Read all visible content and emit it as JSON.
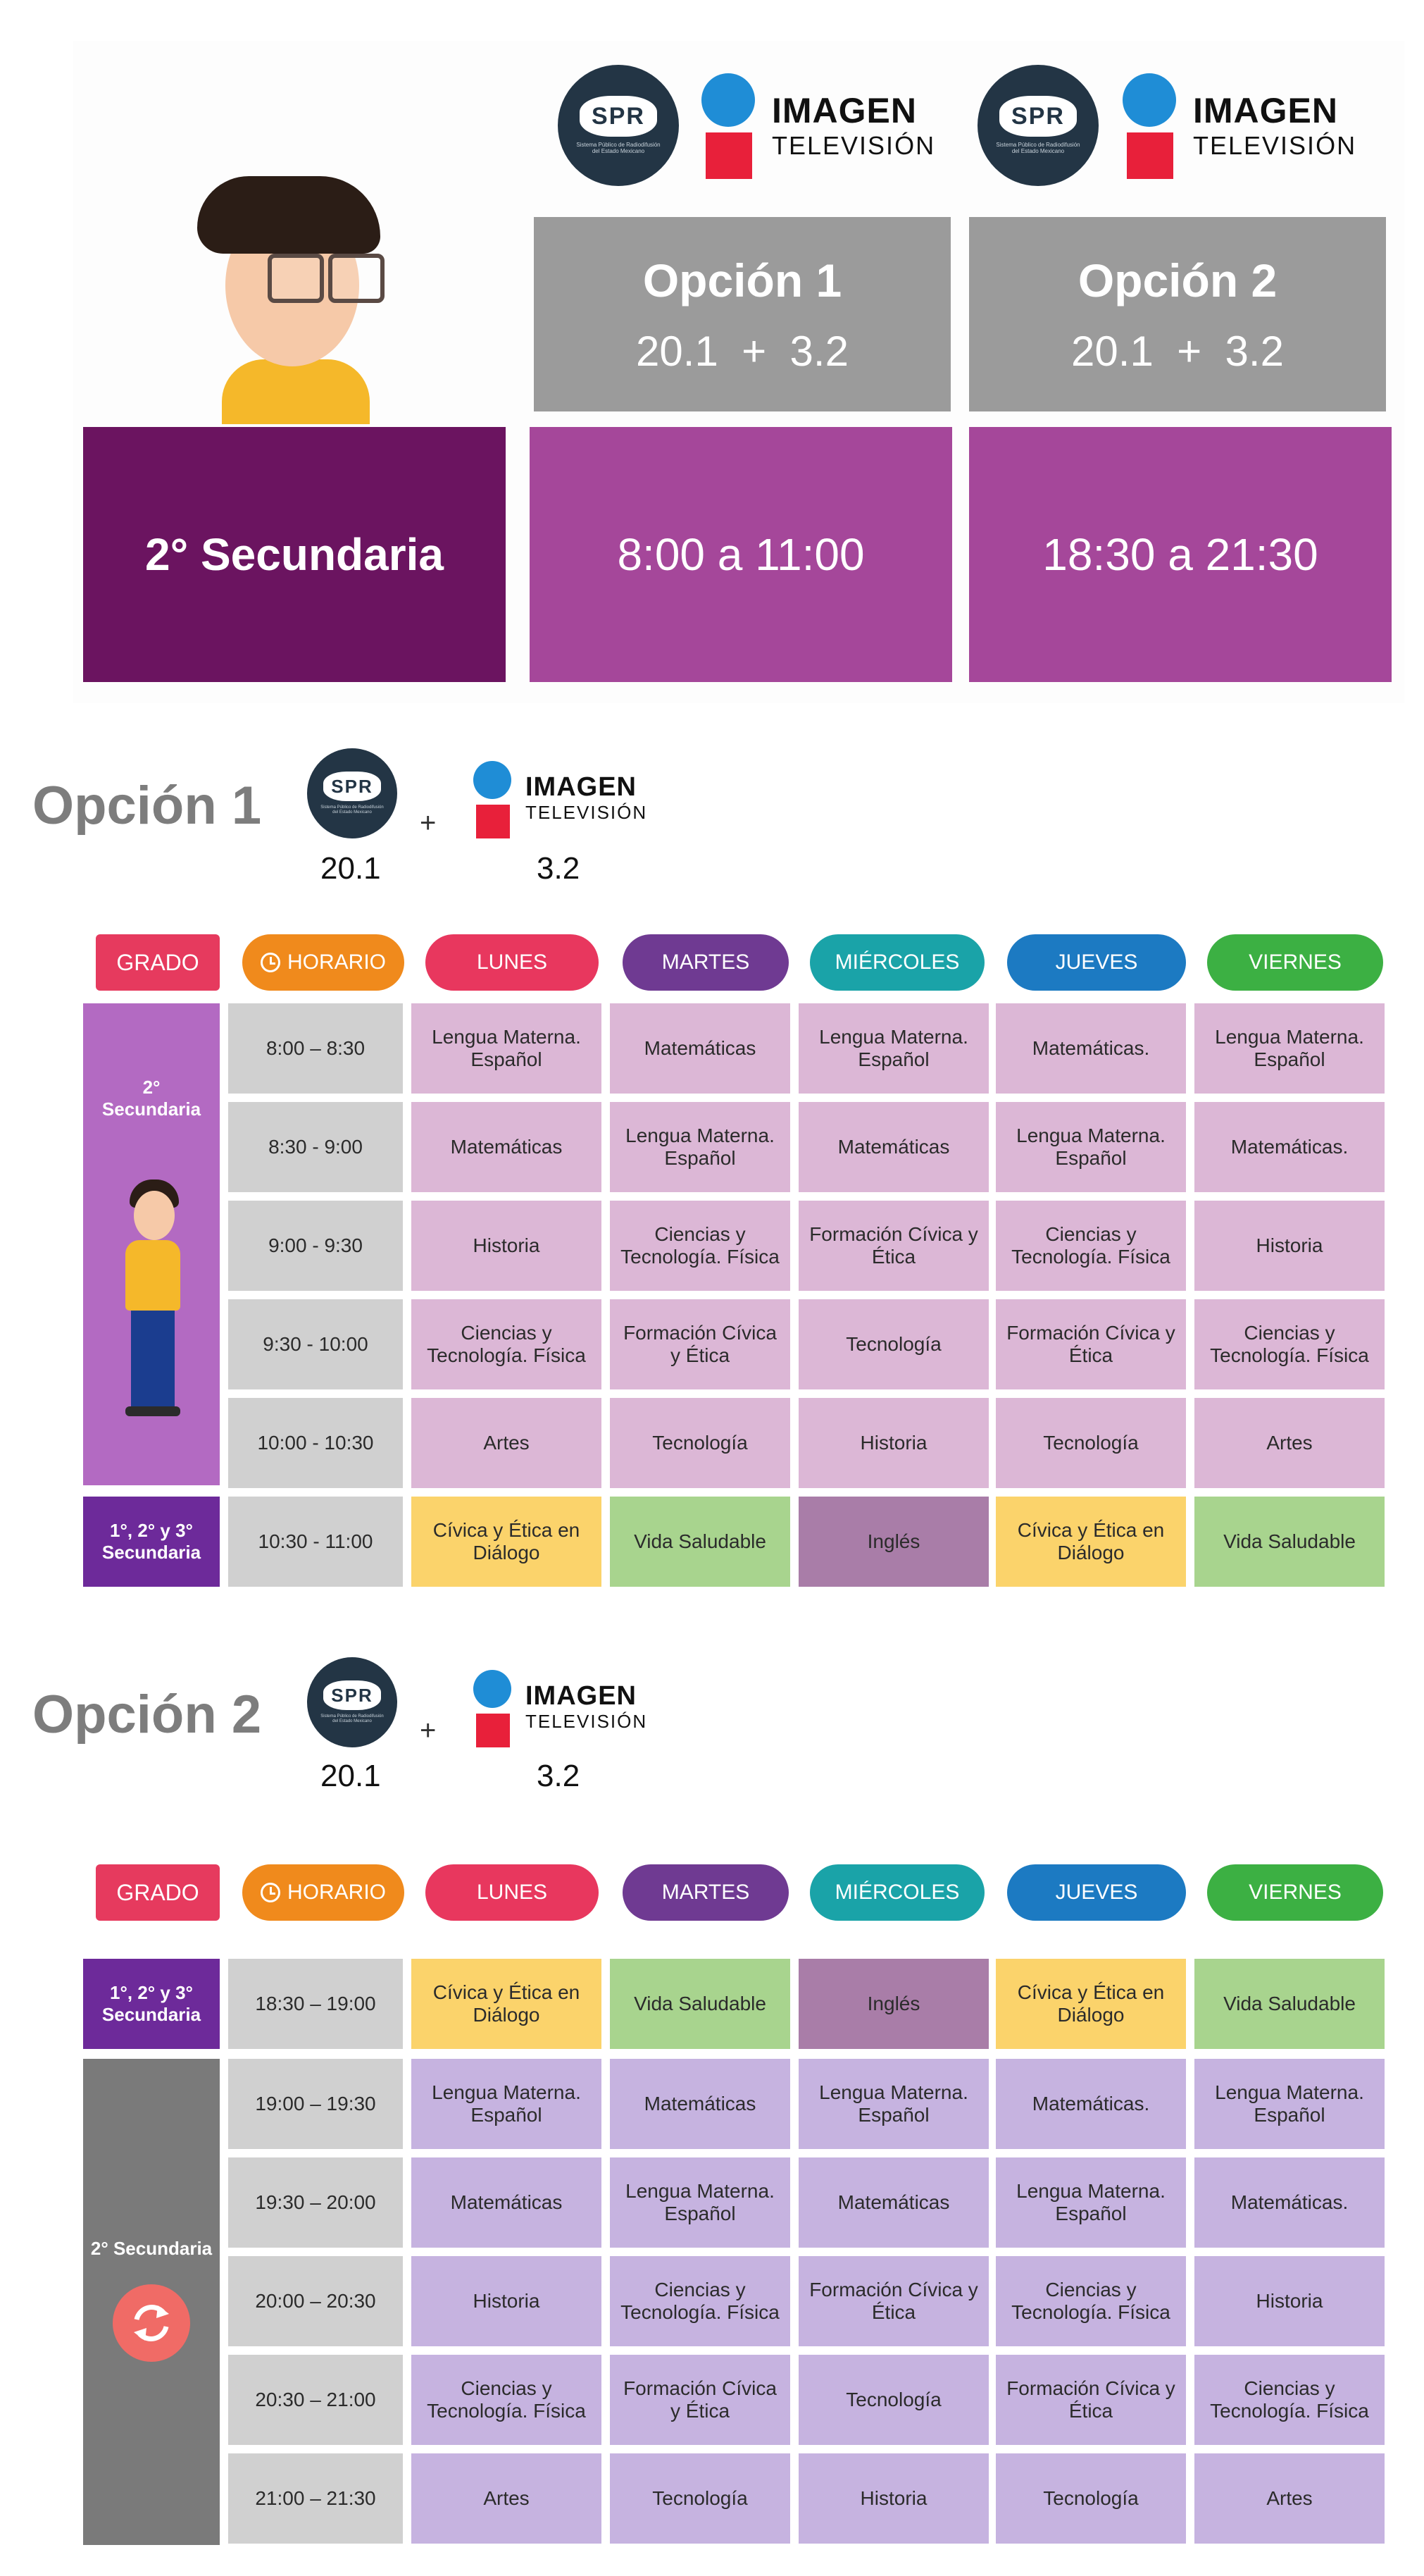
{
  "top": {
    "option1": {
      "title": "Opción 1",
      "channels": "20.1  +  3.2",
      "time": "8:00 a 11:00"
    },
    "option2": {
      "title": "Opción 2",
      "channels": "20.1  +  3.2",
      "time": "18:30 a 21:30"
    },
    "grade": "2° Secundaria"
  },
  "logos": {
    "spr": {
      "mark": "SPR",
      "subtitle": "Sistema Público de Radiodifusión del Estado Mexicano"
    },
    "imagen": {
      "line1": "IMAGEN",
      "line2": "TELEVISIÓN"
    }
  },
  "colors": {
    "lunes": "#e8375e",
    "martes": "#6f3a92",
    "miercoles": "#1aa3a8",
    "jueves": "#1c7ac2",
    "viernes": "#3cb043",
    "horario": "#f08a1c",
    "grado": "#e63a5e",
    "subject": "#dcb7d6",
    "subject2": "#c6b3e0",
    "civica": "#fbd36b",
    "saludable": "#a8d48e",
    "ingles": "#a97da8",
    "grade1": "#b36ac2",
    "all_grades": "#6d2a9a",
    "grade2": "#7a7a7a"
  },
  "schedule1": {
    "title": "Opción 1",
    "channel_a": "20.1",
    "plus": "+",
    "channel_b": "3.2",
    "headers": {
      "grado": "GRADO",
      "horario": "HORARIO",
      "days": [
        "LUNES",
        "MARTES",
        "MIÉRCOLES",
        "JUEVES",
        "VIERNES"
      ]
    },
    "grade_label": "2°\nSecundaria",
    "all_label": "1°, 2° y 3°\nSecundaria",
    "rows": [
      {
        "time": "8:00 – 8:30",
        "cells": [
          "Lengua Materna.\nEspañol",
          "Matemáticas",
          "Lengua Materna.\nEspañol",
          "Matemáticas.",
          "Lengua Materna.\nEspañol"
        ]
      },
      {
        "time": "8:30 - 9:00",
        "cells": [
          "Matemáticas",
          "Lengua Materna.\nEspañol",
          "Matemáticas",
          "Lengua Materna.\nEspañol",
          "Matemáticas."
        ]
      },
      {
        "time": "9:00 - 9:30",
        "cells": [
          "Historia",
          "Ciencias y\nTecnología. Física",
          "Formación Cívica y\nÉtica",
          "Ciencias y\nTecnología. Física",
          "Historia"
        ]
      },
      {
        "time": "9:30 - 10:00",
        "cells": [
          "Ciencias y\nTecnología. Física",
          "Formación Cívica\ny Ética",
          "Tecnología",
          "Formación Cívica y\nÉtica",
          "Ciencias y\nTecnología. Física"
        ]
      },
      {
        "time": "10:00 - 10:30",
        "cells": [
          "Artes",
          "Tecnología",
          "Historia",
          "Tecnología",
          "Artes"
        ]
      }
    ],
    "shared_row": {
      "time": "10:30 - 11:00",
      "cells": [
        "Cívica y Ética en\nDiálogo",
        "Vida Saludable",
        "Inglés",
        "Cívica y Ética en\nDiálogo",
        "Vida Saludable"
      ]
    }
  },
  "schedule2": {
    "title": "Opción 2",
    "channel_a": "20.1",
    "plus": "+",
    "channel_b": "3.2",
    "headers": {
      "grado": "GRADO",
      "horario": "HORARIO",
      "days": [
        "LUNES",
        "MARTES",
        "MIÉRCOLES",
        "JUEVES",
        "VIERNES"
      ]
    },
    "grade_label": "2° Secundaria",
    "all_label": "1°, 2° y 3°\nSecundaria",
    "shared_row": {
      "time": "18:30 – 19:00",
      "cells": [
        "Cívica y Ética en\nDiálogo",
        "Vida Saludable",
        "Inglés",
        "Cívica y Ética en\nDiálogo",
        "Vida Saludable"
      ]
    },
    "rows": [
      {
        "time": "19:00 – 19:30",
        "cells": [
          "Lengua Materna.\nEspañol",
          "Matemáticas",
          "Lengua Materna.\nEspañol",
          "Matemáticas.",
          "Lengua Materna.\nEspañol"
        ]
      },
      {
        "time": "19:30 – 20:00",
        "cells": [
          "Matemáticas",
          "Lengua Materna.\nEspañol",
          "Matemáticas",
          "Lengua Materna.\nEspañol",
          "Matemáticas."
        ]
      },
      {
        "time": "20:00 – 20:30",
        "cells": [
          "Historia",
          "Ciencias y\nTecnología. Física",
          "Formación Cívica y\nÉtica",
          "Ciencias y\nTecnología. Física",
          "Historia"
        ]
      },
      {
        "time": "20:30 – 21:00",
        "cells": [
          "Ciencias y\nTecnología. Física",
          "Formación Cívica\ny Ética",
          "Tecnología",
          "Formación Cívica y\nÉtica",
          "Ciencias y\nTecnología. Física"
        ]
      },
      {
        "time": "21:00 – 21:30",
        "cells": [
          "Artes",
          "Tecnología",
          "Historia",
          "Tecnología",
          "Artes"
        ]
      }
    ]
  }
}
